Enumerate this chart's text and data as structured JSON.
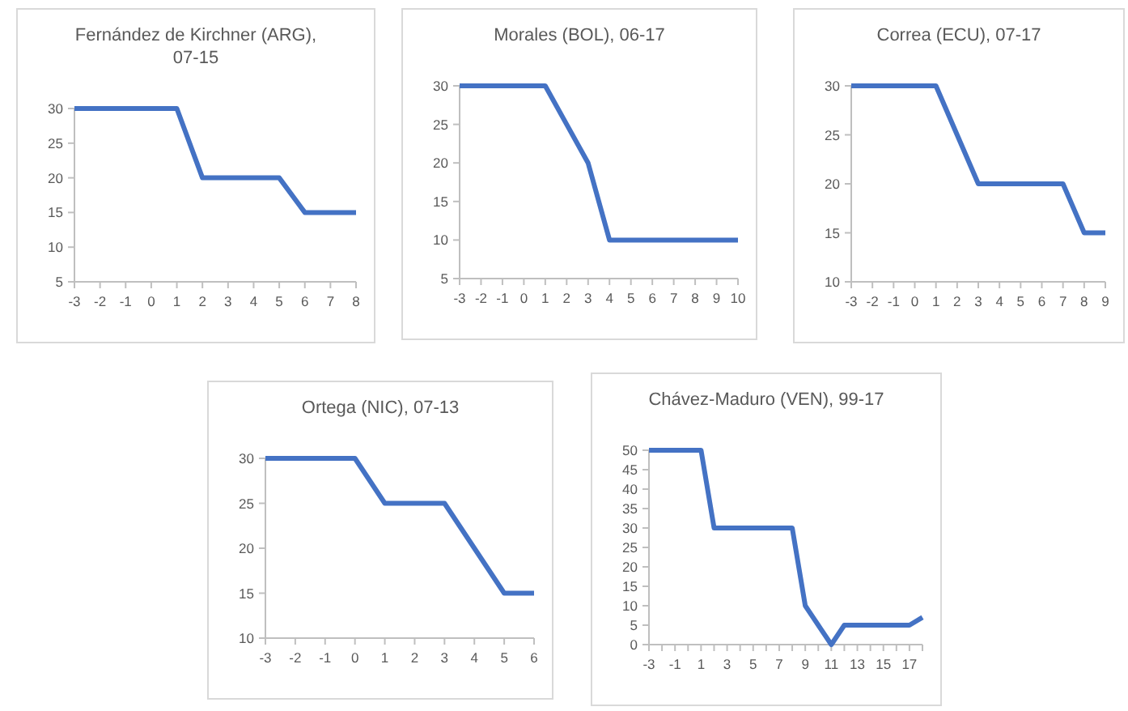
{
  "chart_data": [
    {
      "type": "line",
      "title": "Fernández de Kirchner (ARG), 07-15",
      "x": [
        -3,
        -2,
        -1,
        0,
        1,
        2,
        3,
        4,
        5,
        6,
        7,
        8
      ],
      "series": [
        {
          "color": "#4472c4",
          "values": [
            30,
            30,
            30,
            30,
            30,
            20,
            20,
            20,
            20,
            15,
            15,
            15
          ]
        }
      ],
      "xlim": [
        -3,
        8
      ],
      "xticks": [
        -3,
        -2,
        -1,
        0,
        1,
        2,
        3,
        4,
        5,
        6,
        7,
        8
      ],
      "ylim": [
        5,
        30
      ],
      "yticks": [
        5,
        10,
        15,
        20,
        25,
        30
      ],
      "grid": false,
      "marker": "none",
      "line_style": "solid"
    },
    {
      "type": "line",
      "title": "Morales (BOL), 06-17",
      "x": [
        -3,
        -2,
        -1,
        0,
        1,
        2,
        3,
        4,
        5,
        6,
        7,
        8,
        9,
        10
      ],
      "series": [
        {
          "color": "#4472c4",
          "values": [
            30,
            30,
            30,
            30,
            30,
            25,
            20,
            10,
            10,
            10,
            10,
            10,
            10,
            10
          ]
        }
      ],
      "xlim": [
        -3,
        10
      ],
      "xticks": [
        -3,
        -2,
        -1,
        0,
        1,
        2,
        3,
        4,
        5,
        6,
        7,
        8,
        9,
        10
      ],
      "ylim": [
        5,
        30
      ],
      "yticks": [
        5,
        10,
        15,
        20,
        25,
        30
      ],
      "grid": false,
      "marker": "none",
      "line_style": "solid"
    },
    {
      "type": "line",
      "title": "Correa (ECU), 07-17",
      "x": [
        -3,
        -2,
        -1,
        0,
        1,
        2,
        3,
        4,
        5,
        6,
        7,
        8,
        9
      ],
      "series": [
        {
          "color": "#4472c4",
          "values": [
            30,
            30,
            30,
            30,
            30,
            25,
            20,
            20,
            20,
            20,
            20,
            15,
            15
          ]
        }
      ],
      "xlim": [
        -3,
        9
      ],
      "xticks": [
        -3,
        -2,
        -1,
        0,
        1,
        2,
        3,
        4,
        5,
        6,
        7,
        8,
        9
      ],
      "ylim": [
        10,
        30
      ],
      "yticks": [
        10,
        15,
        20,
        25,
        30
      ],
      "grid": false,
      "marker": "none",
      "line_style": "solid"
    },
    {
      "type": "line",
      "title": "Ortega (NIC), 07-13",
      "x": [
        -3,
        -2,
        -1,
        0,
        1,
        2,
        3,
        4,
        5,
        6
      ],
      "series": [
        {
          "color": "#4472c4",
          "values": [
            30,
            30,
            30,
            30,
            25,
            25,
            25,
            20,
            15,
            15
          ]
        }
      ],
      "xlim": [
        -3,
        6
      ],
      "xticks": [
        -3,
        -2,
        -1,
        0,
        1,
        2,
        3,
        4,
        5,
        6
      ],
      "ylim": [
        10,
        30
      ],
      "yticks": [
        10,
        15,
        20,
        25,
        30
      ],
      "grid": false,
      "marker": "none",
      "line_style": "solid"
    },
    {
      "type": "line",
      "title": "Chávez-Maduro (VEN), 99-17",
      "x": [
        -3,
        -2,
        -1,
        0,
        1,
        2,
        3,
        4,
        5,
        6,
        7,
        8,
        9,
        10,
        11,
        12,
        13,
        14,
        15,
        16,
        17,
        18
      ],
      "series": [
        {
          "color": "#4472c4",
          "values": [
            50,
            50,
            50,
            50,
            50,
            30,
            30,
            30,
            30,
            30,
            30,
            30,
            10,
            5,
            0,
            5,
            5,
            5,
            5,
            5,
            5,
            7
          ]
        }
      ],
      "xlim": [
        -3,
        18
      ],
      "xticks": [
        -3,
        {
          "value": -2,
          "label": null
        },
        -1,
        {
          "value": 0,
          "label": null
        },
        1,
        {
          "value": 2,
          "label": null
        },
        3,
        {
          "value": 4,
          "label": null
        },
        5,
        {
          "value": 6,
          "label": null
        },
        7,
        {
          "value": 8,
          "label": null
        },
        9,
        {
          "value": 10,
          "label": null
        },
        11,
        {
          "value": 12,
          "label": null
        },
        13,
        {
          "value": 14,
          "label": null
        },
        15,
        {
          "value": 16,
          "label": null
        },
        17,
        {
          "value": 18,
          "label": null
        }
      ],
      "ylim": [
        0,
        50
      ],
      "yticks": [
        0,
        5,
        10,
        15,
        20,
        25,
        30,
        35,
        40,
        45,
        50
      ],
      "grid": false,
      "marker": "none",
      "line_style": "solid"
    }
  ]
}
